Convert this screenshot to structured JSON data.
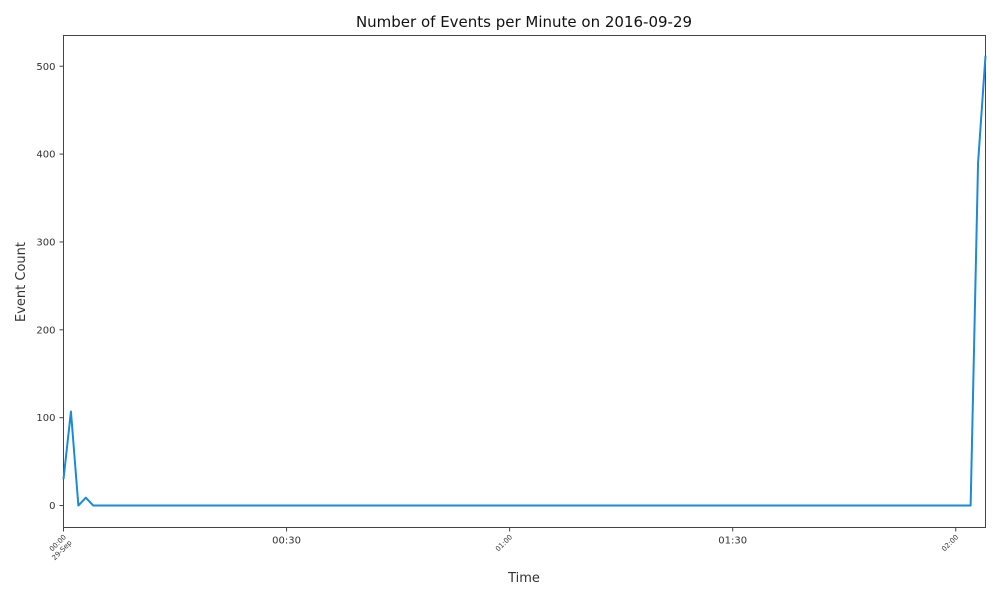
{
  "chart_data": {
    "type": "line",
    "title": "Number of Events per Minute on 2016-09-29",
    "xlabel": "Time",
    "ylabel": "Event Count",
    "ylim": [
      -25,
      535
    ],
    "xlim": [
      "00:00",
      "02:04"
    ],
    "grid": false,
    "y_ticks": [
      {
        "value": 0,
        "label": "0"
      },
      {
        "value": 100,
        "label": "100"
      },
      {
        "value": 200,
        "label": "200"
      },
      {
        "value": 300,
        "label": "300"
      },
      {
        "value": 400,
        "label": "400"
      },
      {
        "value": 500,
        "label": "500"
      }
    ],
    "x_ticks": [
      {
        "value": "00:00",
        "label": "00:00",
        "sublabel": "29-Sep",
        "style": "small-rotated"
      },
      {
        "value": "00:30",
        "label": "00:30",
        "style": "normal"
      },
      {
        "value": "01:00",
        "label": "01:00",
        "style": "small-rotated"
      },
      {
        "value": "01:30",
        "label": "01:30",
        "style": "normal"
      },
      {
        "value": "02:00",
        "label": "02:00",
        "style": "small-rotated"
      }
    ],
    "series": [
      {
        "color": "#1a8ad9",
        "points": [
          {
            "x": "00:00",
            "y": 30
          },
          {
            "x": "00:01",
            "y": 107
          },
          {
            "x": "00:02",
            "y": 0
          },
          {
            "x": "00:03",
            "y": 9
          },
          {
            "x": "00:04",
            "y": 0
          },
          {
            "x": "02:02",
            "y": 0
          },
          {
            "x": "02:03",
            "y": 390
          },
          {
            "x": "02:04",
            "y": 512
          }
        ]
      }
    ]
  }
}
